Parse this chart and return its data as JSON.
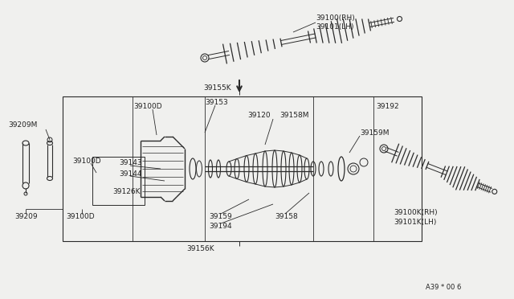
{
  "bg_color": "#f0f0ee",
  "line_color": "#2a2a2a",
  "text_color": "#222222",
  "fig_width": 6.4,
  "fig_height": 3.72,
  "dpi": 100,
  "watermark": "A39 * 00 6",
  "parts": {
    "top_label1": "39100(RH)",
    "top_label2": "39101(LH)",
    "box_top": "39155K",
    "box_bot": "39156K",
    "l39100D_a": "39100D",
    "l39153": "39153",
    "l39120": "39120",
    "l39158M": "39158M",
    "l39192": "39192",
    "l39209M": "39209M",
    "l39100D_b": "39100D",
    "l39143": "39143",
    "l39144": "39144",
    "l39126K": "39126K",
    "l39159M": "39159M",
    "l39209": "39209",
    "l39100D_c": "39100D",
    "l39159": "39159",
    "l39194": "39194",
    "l39158": "39158",
    "l39100K": "39100K(RH)",
    "l39101K": "39101K(LH)"
  }
}
